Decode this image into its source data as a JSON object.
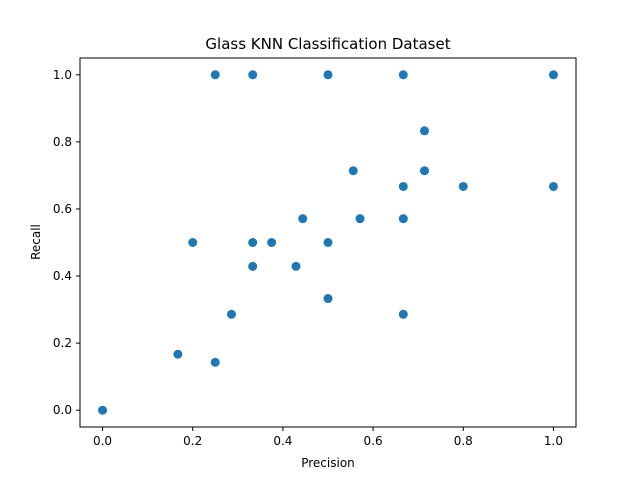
{
  "chart_data": {
    "type": "scatter",
    "title": "Glass KNN Classification Dataset",
    "xlabel": "Precision",
    "ylabel": "Recall",
    "xlim": [
      -0.05,
      1.05
    ],
    "ylim": [
      -0.05,
      1.05
    ],
    "x_ticks": [
      "0.0",
      "0.2",
      "0.4",
      "0.6",
      "0.8",
      "1.0"
    ],
    "y_ticks": [
      "0.0",
      "0.2",
      "0.4",
      "0.6",
      "0.8",
      "1.0"
    ],
    "grid": false,
    "legend": "none",
    "marker_color": "#1f77b4",
    "points": [
      {
        "x": 0.0,
        "y": 0.0
      },
      {
        "x": 0.167,
        "y": 0.167
      },
      {
        "x": 0.2,
        "y": 0.5
      },
      {
        "x": 0.25,
        "y": 0.143
      },
      {
        "x": 0.25,
        "y": 1.0
      },
      {
        "x": 0.286,
        "y": 0.286
      },
      {
        "x": 0.333,
        "y": 1.0
      },
      {
        "x": 0.333,
        "y": 0.5
      },
      {
        "x": 0.333,
        "y": 0.429
      },
      {
        "x": 0.375,
        "y": 0.5
      },
      {
        "x": 0.429,
        "y": 0.429
      },
      {
        "x": 0.444,
        "y": 0.571
      },
      {
        "x": 0.5,
        "y": 1.0
      },
      {
        "x": 0.5,
        "y": 0.5
      },
      {
        "x": 0.5,
        "y": 0.333
      },
      {
        "x": 0.556,
        "y": 0.714
      },
      {
        "x": 0.571,
        "y": 0.571
      },
      {
        "x": 0.667,
        "y": 1.0
      },
      {
        "x": 0.667,
        "y": 0.667
      },
      {
        "x": 0.667,
        "y": 0.571
      },
      {
        "x": 0.667,
        "y": 0.286
      },
      {
        "x": 0.714,
        "y": 0.833
      },
      {
        "x": 0.714,
        "y": 0.714
      },
      {
        "x": 0.8,
        "y": 0.667
      },
      {
        "x": 1.0,
        "y": 1.0
      },
      {
        "x": 1.0,
        "y": 0.667
      }
    ]
  }
}
